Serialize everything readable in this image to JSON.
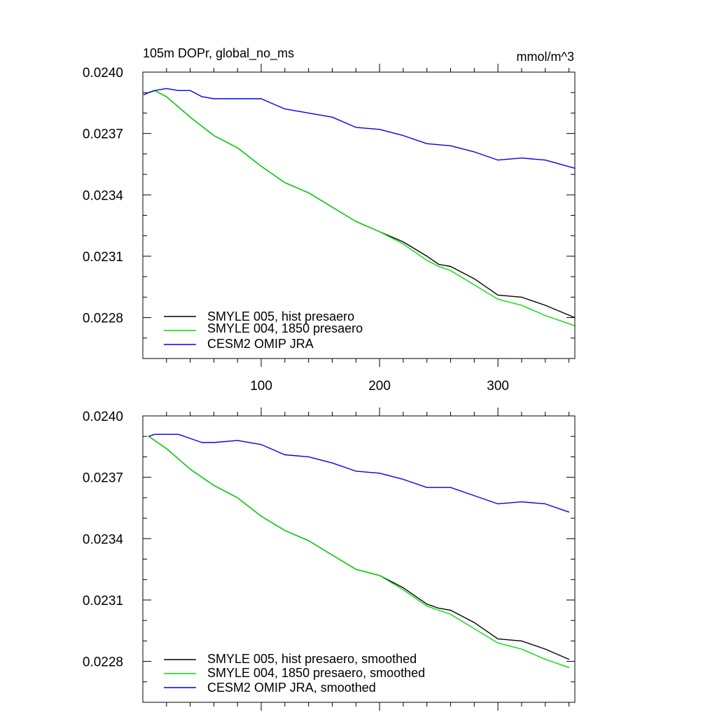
{
  "chart_data": [
    {
      "type": "line",
      "title": "105m DOPr, global_no_ms",
      "units": "mmol/m^3",
      "xlabel": "",
      "ylabel": "",
      "xlim": [
        0,
        365
      ],
      "ylim": [
        0.0226,
        0.024
      ],
      "x_ticks": [
        100,
        200,
        300
      ],
      "y_ticks": [
        "0.0240",
        "0.0237",
        "0.0234",
        "0.0231",
        "0.0228"
      ],
      "grid": false,
      "legend_position": "bottom-left",
      "series": [
        {
          "name": "SMYLE 005, hist presaero",
          "color": "#000000",
          "x": [
            1,
            5,
            10,
            20,
            40,
            60,
            80,
            100,
            120,
            140,
            160,
            180,
            200,
            220,
            240,
            250,
            260,
            280,
            300,
            320,
            340,
            365
          ],
          "y": [
            0.02389,
            0.0239,
            0.02391,
            0.02388,
            0.02378,
            0.02369,
            0.02363,
            0.02354,
            0.02346,
            0.02341,
            0.02334,
            0.02327,
            0.02322,
            0.02317,
            0.0231,
            0.02306,
            0.02305,
            0.02299,
            0.02291,
            0.0229,
            0.02286,
            0.0228
          ]
        },
        {
          "name": "SMYLE 004, 1850 presaero",
          "color": "#00dd00",
          "x": [
            1,
            5,
            10,
            20,
            40,
            60,
            80,
            100,
            120,
            140,
            160,
            180,
            200,
            220,
            240,
            250,
            260,
            280,
            300,
            320,
            340,
            365
          ],
          "y": [
            0.02389,
            0.0239,
            0.02391,
            0.02388,
            0.02378,
            0.02369,
            0.02363,
            0.02354,
            0.02346,
            0.02341,
            0.02334,
            0.02327,
            0.02322,
            0.02316,
            0.02308,
            0.02305,
            0.02303,
            0.02296,
            0.02289,
            0.02286,
            0.02281,
            0.02276
          ]
        },
        {
          "name": "CESM2 OMIP JRA",
          "color": "#0000ee",
          "x": [
            1,
            5,
            10,
            20,
            30,
            40,
            50,
            60,
            80,
            100,
            120,
            140,
            160,
            180,
            200,
            220,
            240,
            260,
            280,
            300,
            320,
            340,
            365
          ],
          "y": [
            0.02389,
            0.0239,
            0.02391,
            0.02392,
            0.02391,
            0.02391,
            0.02388,
            0.02387,
            0.02387,
            0.02387,
            0.02382,
            0.0238,
            0.02378,
            0.02373,
            0.02372,
            0.02369,
            0.02365,
            0.02364,
            0.02361,
            0.02357,
            0.02358,
            0.02357,
            0.02353
          ]
        }
      ]
    },
    {
      "type": "line",
      "title": "",
      "xlabel": "",
      "ylabel": "",
      "xlim": [
        0,
        365
      ],
      "ylim": [
        0.0226,
        0.024
      ],
      "x_ticks": [
        100,
        200,
        300
      ],
      "y_ticks": [
        "0.0240",
        "0.0237",
        "0.0234",
        "0.0231",
        "0.0228"
      ],
      "grid": false,
      "legend_position": "bottom-left",
      "series": [
        {
          "name": "SMYLE 005, hist presaero, smoothed",
          "color": "#000000",
          "x": [
            5,
            10,
            20,
            40,
            60,
            80,
            100,
            120,
            140,
            160,
            180,
            200,
            220,
            240,
            250,
            260,
            280,
            300,
            320,
            340,
            360
          ],
          "y": [
            0.0239,
            0.02388,
            0.02384,
            0.02374,
            0.02366,
            0.0236,
            0.02351,
            0.02344,
            0.02339,
            0.02332,
            0.02325,
            0.02322,
            0.02316,
            0.02308,
            0.02306,
            0.02305,
            0.02299,
            0.02291,
            0.0229,
            0.02286,
            0.02281
          ]
        },
        {
          "name": "SMYLE 004, 1850 presaero, smoothed",
          "color": "#00dd00",
          "x": [
            5,
            10,
            20,
            40,
            60,
            80,
            100,
            120,
            140,
            160,
            180,
            200,
            220,
            240,
            250,
            260,
            280,
            300,
            320,
            340,
            360
          ],
          "y": [
            0.0239,
            0.02388,
            0.02384,
            0.02374,
            0.02366,
            0.0236,
            0.02351,
            0.02344,
            0.02339,
            0.02332,
            0.02325,
            0.02322,
            0.02315,
            0.02307,
            0.02305,
            0.02303,
            0.02296,
            0.02289,
            0.02286,
            0.02281,
            0.02277
          ]
        },
        {
          "name": "CESM2 OMIP JRA, smoothed",
          "color": "#0000ee",
          "x": [
            5,
            10,
            20,
            30,
            40,
            50,
            60,
            80,
            100,
            120,
            140,
            160,
            180,
            200,
            220,
            240,
            260,
            280,
            300,
            320,
            340,
            360
          ],
          "y": [
            0.0239,
            0.02391,
            0.02391,
            0.02391,
            0.02389,
            0.02387,
            0.02387,
            0.02388,
            0.02386,
            0.02381,
            0.0238,
            0.02377,
            0.02373,
            0.02372,
            0.02369,
            0.02365,
            0.02365,
            0.02361,
            0.02357,
            0.02358,
            0.02357,
            0.02353
          ]
        }
      ]
    }
  ]
}
